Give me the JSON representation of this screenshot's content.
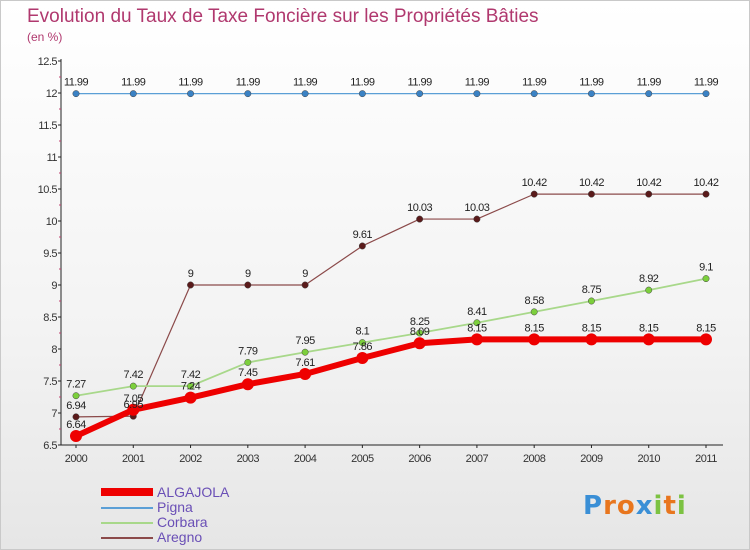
{
  "title": "Evolution du Taux de Taxe Foncière sur les Propriétés Bâties",
  "unit_label": "(en %)",
  "logo": "Proxiti",
  "chart_data": {
    "type": "line",
    "x": [
      "2000",
      "2001",
      "2002",
      "2003",
      "2004",
      "2005",
      "2006",
      "2007",
      "2008",
      "2009",
      "2010",
      "2011"
    ],
    "ylim": [
      6.5,
      12.5
    ],
    "yticks": [
      "6.5",
      "7",
      "7.5",
      "8",
      "8.5",
      "9",
      "9.5",
      "10",
      "10.5",
      "11",
      "11.5",
      "12",
      "12.5"
    ],
    "series": [
      {
        "name": "Pigna",
        "color": "#5b9fd6",
        "marker": "#3b82c4",
        "width": 1.2,
        "values": [
          11.99,
          11.99,
          11.99,
          11.99,
          11.99,
          11.99,
          11.99,
          11.99,
          11.99,
          11.99,
          11.99,
          11.99
        ],
        "labels": [
          "11.99",
          "11.99",
          "11.99",
          "11.99",
          "11.99",
          "11.99",
          "11.99",
          "11.99",
          "11.99",
          "11.99",
          "11.99",
          "11.99"
        ]
      },
      {
        "name": "Aregno",
        "color": "#8b4a4a",
        "marker": "#5a1a1a",
        "width": 1.2,
        "values": [
          6.94,
          6.95,
          9,
          9,
          9,
          9.61,
          10.03,
          10.03,
          10.42,
          10.42,
          10.42,
          10.42
        ],
        "labels": [
          "6.94",
          "6.95",
          "9",
          "9",
          "9",
          "9.61",
          "10.03",
          "10.03",
          "10.42",
          "10.42",
          "10.42",
          "10.42"
        ]
      },
      {
        "name": "Corbara",
        "color": "#a8d88a",
        "marker": "#7ccf3c",
        "width": 1.8,
        "values": [
          7.27,
          7.42,
          7.42,
          7.79,
          7.95,
          8.1,
          8.25,
          8.41,
          8.58,
          8.75,
          8.92,
          9.1
        ],
        "labels": [
          "7.27",
          "7.42",
          "7.42",
          "7.79",
          "7.95",
          "8.1",
          "8.25",
          "8.41",
          "8.58",
          "8.75",
          "8.92",
          "9.1"
        ]
      },
      {
        "name": "ALGAJOLA",
        "color": "#ee0000",
        "marker": "#ee0000",
        "width": 6,
        "values": [
          6.64,
          7.05,
          7.24,
          7.45,
          7.61,
          7.86,
          8.09,
          8.15,
          8.15,
          8.15,
          8.15,
          8.15
        ],
        "labels": [
          "6.64",
          "7.05",
          "7.24",
          "7.45",
          "7.61",
          "7.86",
          "8.09",
          "8.15",
          "8.15",
          "8.15",
          "8.15",
          "8.15"
        ]
      }
    ],
    "legend": [
      {
        "name": "ALGAJOLA",
        "color": "#ee0000"
      },
      {
        "name": "Pigna",
        "color": "#5b9fd6"
      },
      {
        "name": "Corbara",
        "color": "#a8d88a"
      },
      {
        "name": "Aregno",
        "color": "#8b4a4a"
      }
    ]
  }
}
